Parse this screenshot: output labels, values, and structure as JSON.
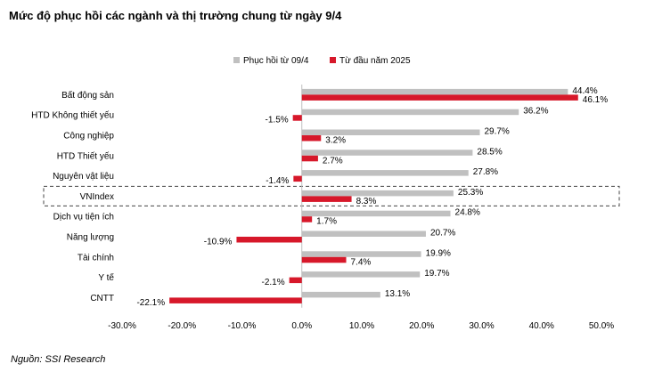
{
  "title": "Mức độ phục hồi các ngành và thị trường chung từ ngày 9/4",
  "source": "Nguồn: SSI Research",
  "chart_data": {
    "type": "bar",
    "orientation": "horizontal",
    "categories": [
      "Bất động sản",
      "HTD Không thiết yếu",
      "Công nghiệp",
      "HTD Thiết yếu",
      "Nguyên vật liệu",
      "VNIndex",
      "Dịch vụ tiện ích",
      "Năng lượng",
      "Tài chính",
      "Y tế",
      "CNTT"
    ],
    "series": [
      {
        "name": "Phục hồi từ 09/4",
        "color": "#c0c0c0",
        "values": [
          44.4,
          36.2,
          29.7,
          28.5,
          27.8,
          25.3,
          24.8,
          20.7,
          19.9,
          19.7,
          13.1
        ]
      },
      {
        "name": "Từ đầu năm 2025",
        "color": "#d7182a",
        "values": [
          46.1,
          -1.5,
          3.2,
          2.7,
          -1.4,
          8.3,
          1.7,
          -10.9,
          7.4,
          -2.1,
          -22.1
        ]
      }
    ],
    "xlim": [
      -30,
      50
    ],
    "xticks": [
      -30,
      -20,
      -10,
      0,
      10,
      20,
      30,
      40,
      50
    ],
    "tick_format": "percent_1dp",
    "highlight_category": "VNIndex",
    "legend_position": "top-right",
    "grid": false
  }
}
